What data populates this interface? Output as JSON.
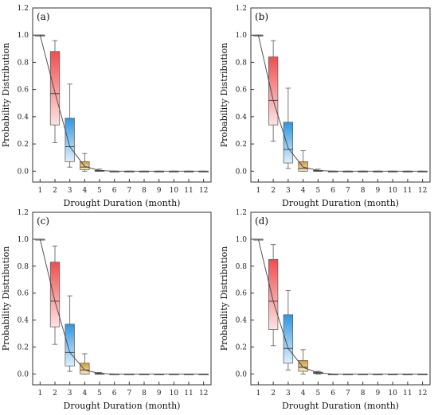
{
  "colors": {
    "red": "#ef5a5a",
    "blue": "#3fa0e4",
    "gold": "#d9a84c",
    "gray": "#6a6a6a"
  },
  "chart_data": [
    {
      "type": "box",
      "panel": "(a)",
      "xlabel": "Drought Duration (month)",
      "ylabel": "Probability Distribution",
      "x_ticks": [
        "1",
        "2",
        "3",
        "4",
        "5",
        "6",
        "7",
        "8",
        "9",
        "10",
        "11",
        "12"
      ],
      "y_ticks": [
        "0.0",
        "0.2",
        "0.4",
        "0.6",
        "0.8",
        "1.0",
        "1.2"
      ],
      "ylim": [
        -0.08,
        1.2
      ],
      "grid": false,
      "line": [
        1.0,
        0.58,
        0.18,
        0.035,
        0.005,
        0,
        0,
        0,
        0,
        0,
        0,
        0
      ],
      "boxes": [
        {
          "x": 1,
          "color": "gray",
          "min": 1.0,
          "q1": 1.0,
          "median": 1.0,
          "q3": 1.0,
          "max": 1.0
        },
        {
          "x": 2,
          "color": "red",
          "min": 0.21,
          "q1": 0.34,
          "median": 0.57,
          "q3": 0.88,
          "max": 0.96
        },
        {
          "x": 3,
          "color": "blue",
          "min": 0.03,
          "q1": 0.07,
          "median": 0.18,
          "q3": 0.39,
          "max": 0.64
        },
        {
          "x": 4,
          "color": "gold",
          "min": 0.0,
          "q1": 0.01,
          "median": 0.03,
          "q3": 0.07,
          "max": 0.13
        },
        {
          "x": 5,
          "color": "gray",
          "min": 0.0,
          "q1": 0.0,
          "median": 0.002,
          "q3": 0.006,
          "max": 0.015
        },
        {
          "x": 6,
          "color": "gray",
          "min": 0.0,
          "q1": 0.0,
          "median": 0.0,
          "q3": 0.0,
          "max": 0.0
        },
        {
          "x": 7,
          "color": "gray",
          "min": 0.0,
          "q1": 0.0,
          "median": 0.0,
          "q3": 0.0,
          "max": 0.0
        },
        {
          "x": 8,
          "color": "gray",
          "min": 0.0,
          "q1": 0.0,
          "median": 0.0,
          "q3": 0.0,
          "max": 0.0
        },
        {
          "x": 9,
          "color": "gray",
          "min": 0.0,
          "q1": 0.0,
          "median": 0.0,
          "q3": 0.0,
          "max": 0.0
        },
        {
          "x": 10,
          "color": "gray",
          "min": 0.0,
          "q1": 0.0,
          "median": 0.0,
          "q3": 0.0,
          "max": 0.0
        },
        {
          "x": 11,
          "color": "gray",
          "min": 0.0,
          "q1": 0.0,
          "median": 0.0,
          "q3": 0.0,
          "max": 0.0
        },
        {
          "x": 12,
          "color": "gray",
          "min": 0.0,
          "q1": 0.0,
          "median": 0.0,
          "q3": 0.0,
          "max": 0.0
        }
      ]
    },
    {
      "type": "box",
      "panel": "(b)",
      "xlabel": "Drought Duration (month)",
      "ylabel": "Probability Distribution",
      "x_ticks": [
        "1",
        "2",
        "3",
        "4",
        "5",
        "6",
        "7",
        "8",
        "9",
        "10",
        "11",
        "12"
      ],
      "y_ticks": [
        "0.0",
        "0.2",
        "0.4",
        "0.6",
        "0.8",
        "1.0",
        "1.2"
      ],
      "ylim": [
        -0.08,
        1.2
      ],
      "grid": false,
      "line": [
        1.0,
        0.52,
        0.17,
        0.03,
        0.005,
        0,
        0,
        0,
        0,
        0,
        0,
        0
      ],
      "boxes": [
        {
          "x": 1,
          "color": "gray",
          "min": 1.0,
          "q1": 1.0,
          "median": 1.0,
          "q3": 1.0,
          "max": 1.0
        },
        {
          "x": 2,
          "color": "red",
          "min": 0.22,
          "q1": 0.34,
          "median": 0.52,
          "q3": 0.84,
          "max": 0.96
        },
        {
          "x": 3,
          "color": "blue",
          "min": 0.02,
          "q1": 0.06,
          "median": 0.16,
          "q3": 0.36,
          "max": 0.61
        },
        {
          "x": 4,
          "color": "gold",
          "min": 0.0,
          "q1": 0.0,
          "median": 0.02,
          "q3": 0.07,
          "max": 0.15
        },
        {
          "x": 5,
          "color": "gray",
          "min": 0.0,
          "q1": 0.0,
          "median": 0.002,
          "q3": 0.006,
          "max": 0.015
        },
        {
          "x": 6,
          "color": "gray",
          "min": 0.0,
          "q1": 0.0,
          "median": 0.0,
          "q3": 0.0,
          "max": 0.0
        },
        {
          "x": 7,
          "color": "gray",
          "min": 0.0,
          "q1": 0.0,
          "median": 0.0,
          "q3": 0.0,
          "max": 0.0
        },
        {
          "x": 8,
          "color": "gray",
          "min": 0.0,
          "q1": 0.0,
          "median": 0.0,
          "q3": 0.0,
          "max": 0.0
        },
        {
          "x": 9,
          "color": "gray",
          "min": 0.0,
          "q1": 0.0,
          "median": 0.0,
          "q3": 0.0,
          "max": 0.0
        },
        {
          "x": 10,
          "color": "gray",
          "min": 0.0,
          "q1": 0.0,
          "median": 0.0,
          "q3": 0.0,
          "max": 0.0
        },
        {
          "x": 11,
          "color": "gray",
          "min": 0.0,
          "q1": 0.0,
          "median": 0.0,
          "q3": 0.0,
          "max": 0.0
        },
        {
          "x": 12,
          "color": "gray",
          "min": 0.0,
          "q1": 0.0,
          "median": 0.0,
          "q3": 0.0,
          "max": 0.0
        }
      ]
    },
    {
      "type": "box",
      "panel": "(c)",
      "xlabel": "Drought Duration (month)",
      "ylabel": "Probability Distribution",
      "x_ticks": [
        "1",
        "2",
        "3",
        "4",
        "5",
        "6",
        "7",
        "8",
        "9",
        "10",
        "11",
        "12"
      ],
      "y_ticks": [
        "0.0",
        "0.2",
        "0.4",
        "0.6",
        "0.8",
        "1.0",
        "1.2"
      ],
      "ylim": [
        -0.08,
        1.2
      ],
      "grid": false,
      "line": [
        1.0,
        0.54,
        0.16,
        0.03,
        0.004,
        0,
        0,
        0,
        0,
        0,
        0,
        0
      ],
      "boxes": [
        {
          "x": 1,
          "color": "gray",
          "min": 1.0,
          "q1": 1.0,
          "median": 1.0,
          "q3": 1.0,
          "max": 1.0
        },
        {
          "x": 2,
          "color": "red",
          "min": 0.22,
          "q1": 0.35,
          "median": 0.54,
          "q3": 0.83,
          "max": 0.95
        },
        {
          "x": 3,
          "color": "blue",
          "min": 0.02,
          "q1": 0.06,
          "median": 0.16,
          "q3": 0.37,
          "max": 0.58
        },
        {
          "x": 4,
          "color": "gold",
          "min": 0.0,
          "q1": 0.0,
          "median": 0.03,
          "q3": 0.08,
          "max": 0.15
        },
        {
          "x": 5,
          "color": "gray",
          "min": 0.0,
          "q1": 0.0,
          "median": 0.002,
          "q3": 0.005,
          "max": 0.012
        },
        {
          "x": 6,
          "color": "gray",
          "min": 0.0,
          "q1": 0.0,
          "median": 0.0,
          "q3": 0.0,
          "max": 0.0
        },
        {
          "x": 7,
          "color": "gray",
          "min": 0.0,
          "q1": 0.0,
          "median": 0.0,
          "q3": 0.0,
          "max": 0.0
        },
        {
          "x": 8,
          "color": "gray",
          "min": 0.0,
          "q1": 0.0,
          "median": 0.0,
          "q3": 0.0,
          "max": 0.0
        },
        {
          "x": 9,
          "color": "gray",
          "min": 0.0,
          "q1": 0.0,
          "median": 0.0,
          "q3": 0.0,
          "max": 0.0
        },
        {
          "x": 10,
          "color": "gray",
          "min": 0.0,
          "q1": 0.0,
          "median": 0.0,
          "q3": 0.0,
          "max": 0.0
        },
        {
          "x": 11,
          "color": "gray",
          "min": 0.0,
          "q1": 0.0,
          "median": 0.0,
          "q3": 0.0,
          "max": 0.0
        },
        {
          "x": 12,
          "color": "gray",
          "min": 0.0,
          "q1": 0.0,
          "median": 0.0,
          "q3": 0.0,
          "max": 0.0
        }
      ]
    },
    {
      "type": "box",
      "panel": "(d)",
      "xlabel": "Drought Duration (month)",
      "ylabel": "Probability Distribution",
      "x_ticks": [
        "1",
        "2",
        "3",
        "4",
        "5",
        "6",
        "7",
        "8",
        "9",
        "10",
        "11",
        "12"
      ],
      "y_ticks": [
        "0.0",
        "0.2",
        "0.4",
        "0.6",
        "0.8",
        "1.0",
        "1.2"
      ],
      "ylim": [
        -0.08,
        1.2
      ],
      "grid": false,
      "line": [
        1.0,
        0.54,
        0.19,
        0.05,
        0.008,
        0,
        0,
        0,
        0,
        0,
        0,
        0
      ],
      "boxes": [
        {
          "x": 1,
          "color": "gray",
          "min": 1.0,
          "q1": 1.0,
          "median": 1.0,
          "q3": 1.0,
          "max": 1.0
        },
        {
          "x": 2,
          "color": "red",
          "min": 0.21,
          "q1": 0.33,
          "median": 0.54,
          "q3": 0.85,
          "max": 0.96
        },
        {
          "x": 3,
          "color": "blue",
          "min": 0.03,
          "q1": 0.08,
          "median": 0.19,
          "q3": 0.44,
          "max": 0.62
        },
        {
          "x": 4,
          "color": "gold",
          "min": 0.0,
          "q1": 0.02,
          "median": 0.05,
          "q3": 0.1,
          "max": 0.18
        },
        {
          "x": 5,
          "color": "blue",
          "min": 0.0,
          "q1": 0.003,
          "median": 0.008,
          "q3": 0.014,
          "max": 0.02
        },
        {
          "x": 6,
          "color": "gray",
          "min": 0.0,
          "q1": 0.0,
          "median": 0.0,
          "q3": 0.0,
          "max": 0.0
        },
        {
          "x": 7,
          "color": "gray",
          "min": 0.0,
          "q1": 0.0,
          "median": 0.0,
          "q3": 0.0,
          "max": 0.0
        },
        {
          "x": 8,
          "color": "gray",
          "min": 0.0,
          "q1": 0.0,
          "median": 0.0,
          "q3": 0.0,
          "max": 0.0
        },
        {
          "x": 9,
          "color": "gray",
          "min": 0.0,
          "q1": 0.0,
          "median": 0.0,
          "q3": 0.0,
          "max": 0.0
        },
        {
          "x": 10,
          "color": "gray",
          "min": 0.0,
          "q1": 0.0,
          "median": 0.0,
          "q3": 0.0,
          "max": 0.0
        },
        {
          "x": 11,
          "color": "gray",
          "min": 0.0,
          "q1": 0.0,
          "median": 0.0,
          "q3": 0.0,
          "max": 0.0
        },
        {
          "x": 12,
          "color": "gray",
          "min": 0.0,
          "q1": 0.0,
          "median": 0.0,
          "q3": 0.0,
          "max": 0.0
        }
      ]
    }
  ]
}
